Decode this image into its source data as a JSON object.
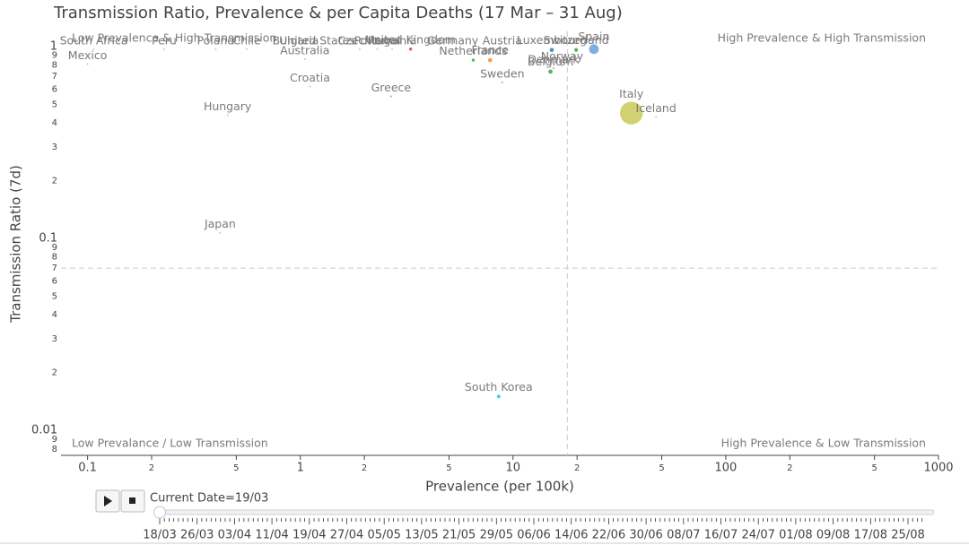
{
  "chart_data": {
    "type": "scatter",
    "title": "Transmission Ratio, Prevalence & per Capita Deaths (17 Mar – 31 Aug)",
    "xlabel": "Prevalence (per 100k)",
    "ylabel": "Transmission Ratio (7d)",
    "log_x": true,
    "log_y": true,
    "xlim": [
      0.075,
      1000
    ],
    "ylim": [
      0.0074,
      1.2
    ],
    "xticks": [
      0.1,
      {
        "value": 0.2,
        "label": "2"
      },
      {
        "value": 0.5,
        "label": "5"
      },
      1,
      {
        "value": 2,
        "label": "2"
      },
      {
        "value": 5,
        "label": "5"
      },
      10,
      {
        "value": 20,
        "label": "2"
      },
      {
        "value": 50,
        "label": "5"
      },
      100,
      {
        "value": 200,
        "label": "2"
      },
      {
        "value": 500,
        "label": "5"
      },
      1000
    ],
    "yticks": [
      {
        "value": 0.008,
        "label": "8"
      },
      {
        "value": 0.009,
        "label": "9"
      },
      0.01,
      {
        "value": 0.02,
        "label": "2"
      },
      {
        "value": 0.03,
        "label": "3"
      },
      {
        "value": 0.04,
        "label": "4"
      },
      {
        "value": 0.05,
        "label": "5"
      },
      {
        "value": 0.06,
        "label": "6"
      },
      {
        "value": 0.07,
        "label": "7"
      },
      {
        "value": 0.08,
        "label": "8"
      },
      {
        "value": 0.09,
        "label": "9"
      },
      0.1,
      {
        "value": 0.2,
        "label": "2"
      },
      {
        "value": 0.3,
        "label": "3"
      },
      {
        "value": 0.4,
        "label": "4"
      },
      {
        "value": 0.5,
        "label": "5"
      },
      {
        "value": 0.6,
        "label": "6"
      },
      {
        "value": 0.7,
        "label": "7"
      },
      {
        "value": 0.8,
        "label": "8"
      },
      {
        "value": 0.9,
        "label": "9"
      },
      1
    ],
    "ref_lines": {
      "x": 18,
      "y": 0.07
    },
    "annotations": [
      {
        "text": "Low Prevalence & High Transmission",
        "corner": "top-left"
      },
      {
        "text": "High Prevalence & High Transmission",
        "corner": "top-right"
      },
      {
        "text": "Low Prevalance / Low Transmission",
        "corner": "bottom-left"
      },
      {
        "text": "High Prevalence & Low Transmission",
        "corner": "bottom-right"
      }
    ],
    "points": [
      {
        "name": "South Africa",
        "x": 0.107,
        "y": 0.97,
        "size": 0.02,
        "color": "#bbbbbb"
      },
      {
        "name": "Mexico",
        "x": 0.1,
        "y": 0.81,
        "size": 0.02,
        "color": "#bbbbbb"
      },
      {
        "name": "Peru",
        "x": 0.229,
        "y": 0.97,
        "size": 0.02,
        "color": "#bbbbbb"
      },
      {
        "name": "Poland",
        "x": 0.4,
        "y": 0.97,
        "size": 0.02,
        "color": "#bbbbbb"
      },
      {
        "name": "Chile",
        "x": 0.56,
        "y": 0.97,
        "size": 0.02,
        "color": "#bbbbbb"
      },
      {
        "name": "Bulgaria",
        "x": 0.95,
        "y": 0.97,
        "size": 0.02,
        "color": "#bbbbbb"
      },
      {
        "name": "United States",
        "x": 1.2,
        "y": 0.97,
        "size": 0.02,
        "color": "#bbbbbb"
      },
      {
        "name": "Australia",
        "x": 1.05,
        "y": 0.86,
        "size": 0.02,
        "color": "#bbbbbb"
      },
      {
        "name": "Hungary",
        "x": 0.455,
        "y": 0.44,
        "size": 0.02,
        "color": "#bbbbbb"
      },
      {
        "name": "Japan",
        "x": 0.42,
        "y": 0.107,
        "size": 0.02,
        "color": "#bbbbbb"
      },
      {
        "name": "Croatia",
        "x": 1.11,
        "y": 0.62,
        "size": 0.02,
        "color": "#bbbbbb"
      },
      {
        "name": "Czechia",
        "x": 1.9,
        "y": 0.97,
        "size": 0.02,
        "color": "#bbbbbb"
      },
      {
        "name": "Portugal",
        "x": 2.3,
        "y": 0.97,
        "size": 0.02,
        "color": "#bbbbbb"
      },
      {
        "name": "Romania",
        "x": 2.7,
        "y": 0.97,
        "size": 0.02,
        "color": "#bbbbbb"
      },
      {
        "name": "Greece",
        "x": 2.67,
        "y": 0.55,
        "size": 0.03,
        "color": "#999999"
      },
      {
        "name": "United Kingdom",
        "x": 3.3,
        "y": 0.97,
        "size": 0.08,
        "color": "#d62728"
      },
      {
        "name": "Germany",
        "x": 5.2,
        "y": 0.97,
        "size": 0.02,
        "color": "#bbbbbb"
      },
      {
        "name": "Netherlands",
        "x": 6.5,
        "y": 0.85,
        "size": 0.08,
        "color": "#2ca02c"
      },
      {
        "name": "France",
        "x": 7.8,
        "y": 0.85,
        "size": 0.15,
        "color": "#ff7f0e"
      },
      {
        "name": "Austria",
        "x": 8.9,
        "y": 0.97,
        "size": 0.02,
        "color": "#bbbbbb"
      },
      {
        "name": "Sweden",
        "x": 8.9,
        "y": 0.65,
        "size": 0.03,
        "color": "#999999"
      },
      {
        "name": "South Korea",
        "x": 8.56,
        "y": 0.015,
        "size": 0.1,
        "color": "#17becf"
      },
      {
        "name": "Luxembourg",
        "x": 15.2,
        "y": 0.96,
        "size": 0.15,
        "color": "#1f77b4"
      },
      {
        "name": "Belgium",
        "x": 15,
        "y": 0.74,
        "size": 0.15,
        "color": "#2ca02c"
      },
      {
        "name": "Norway",
        "x": 17,
        "y": 0.8,
        "size": 0.03,
        "color": "#999999"
      },
      {
        "name": "Denmark",
        "x": 15.5,
        "y": 0.77,
        "size": 0.03,
        "color": "#999999"
      },
      {
        "name": "Switzerland",
        "x": 19.8,
        "y": 0.96,
        "size": 0.12,
        "color": "#2ca02c"
      },
      {
        "name": "Spain",
        "x": 24,
        "y": 0.97,
        "size": 0.8,
        "color": "#5b9bd5"
      },
      {
        "name": "Italy",
        "x": 36,
        "y": 0.45,
        "size": 4.5,
        "color": "#c5c64f"
      },
      {
        "name": "Iceland",
        "x": 47,
        "y": 0.43,
        "size": 0.02,
        "color": "#bbbbbb"
      }
    ],
    "slider": {
      "current_label": "Current Date=19/03",
      "steps": [
        "18/03",
        "26/03",
        "03/04",
        "11/04",
        "19/04",
        "27/04",
        "05/05",
        "13/05",
        "21/05",
        "29/05",
        "06/06",
        "14/06",
        "22/06",
        "30/06",
        "08/07",
        "16/07",
        "24/07",
        "01/08",
        "09/08",
        "17/08",
        "25/08"
      ]
    }
  }
}
